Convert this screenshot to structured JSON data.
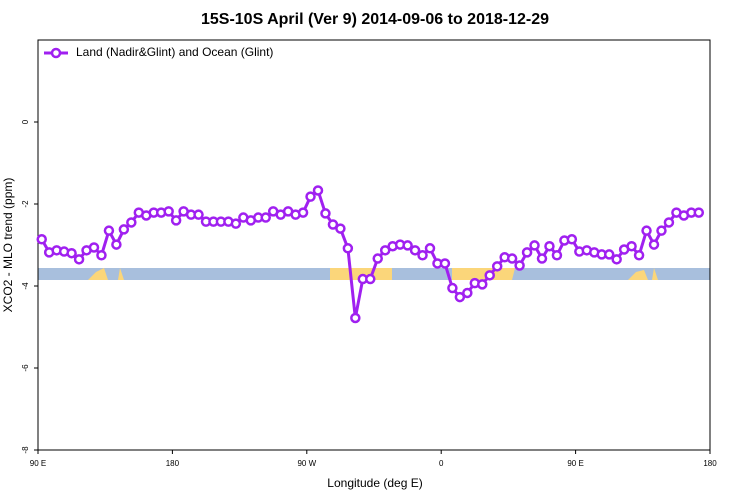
{
  "chart_data": {
    "type": "line",
    "title": "15S-10S April (Ver 9)   2014-09-06 to 2018-12-29",
    "x_label": "Longitude (deg E)",
    "y_label": "XCO2 - MLO trend (ppm)",
    "xlim": [
      90,
      540
    ],
    "ylim": [
      -8,
      2
    ],
    "xticks": [
      {
        "value": 90,
        "label": "90 E"
      },
      180,
      {
        "value": 270,
        "label": "90 W"
      },
      {
        "value": 360,
        "label": "0"
      },
      {
        "value": 450,
        "label": "90 E"
      },
      {
        "value": 540,
        "label": "180"
      }
    ],
    "yticks": [
      -8,
      -6,
      -4,
      -2,
      0
    ],
    "legend": "upper left",
    "x": [
      92.5,
      97.5,
      102.5,
      107.5,
      112.5,
      117.5,
      122.5,
      127.5,
      132.5,
      137.5,
      142.5,
      147.5,
      152.5,
      157.5,
      162.5,
      167.5,
      172.5,
      177.5,
      182.5,
      187.5,
      192.5,
      197.5,
      202.5,
      207.5,
      212.5,
      217.5,
      222.5,
      227.5,
      232.5,
      237.5,
      242.5,
      247.5,
      252.5,
      257.5,
      262.5,
      267.5,
      272.5,
      277.5,
      282.5,
      287.5,
      292.5,
      297.5,
      302.5,
      307.5,
      312.5,
      317.5,
      322.5,
      327.5,
      332.5,
      337.5,
      342.5,
      347.5,
      352.5,
      357.5,
      362.5,
      367.5,
      372.5,
      377.5,
      382.5,
      387.5,
      392.5,
      397.5,
      402.5,
      407.5,
      412.5,
      417.5,
      422.5,
      427.5,
      432.5,
      437.5,
      442.5,
      447.5,
      452.5,
      457.5,
      462.5,
      467.5,
      472.5,
      477.5,
      482.5,
      487.5,
      492.5,
      497.5,
      502.5,
      507.5,
      512.5,
      517.5,
      522.5,
      527.5,
      532.5
    ],
    "series": [
      {
        "name": "Land (Nadir&Glint) and Ocean (Glint)",
        "color": "#a020f0",
        "values": [
          -2.86,
          -3.18,
          -3.13,
          -3.16,
          -3.2,
          -3.35,
          -3.13,
          -3.06,
          -3.25,
          -2.65,
          -2.99,
          -2.62,
          -2.45,
          -2.21,
          -2.28,
          -2.21,
          -2.21,
          -2.18,
          -2.4,
          -2.18,
          -2.26,
          -2.26,
          -2.43,
          -2.43,
          -2.43,
          -2.43,
          -2.48,
          -2.33,
          -2.4,
          -2.33,
          -2.33,
          -2.18,
          -2.26,
          -2.18,
          -2.26,
          -2.21,
          -1.82,
          -1.67,
          -2.23,
          -2.5,
          -2.6,
          -3.08,
          -4.78,
          -3.83,
          -3.83,
          -3.33,
          -3.13,
          -3.03,
          -2.99,
          -3.01,
          -3.13,
          -3.25,
          -3.08,
          -3.45,
          -3.45,
          -4.05,
          -4.27,
          -4.17,
          -3.93,
          -3.96,
          -3.74,
          -3.52,
          -3.3,
          -3.33,
          -3.5,
          -3.18,
          -3.01,
          -3.33,
          -3.03,
          -3.25,
          -2.89,
          -2.86,
          -3.16,
          -3.13,
          -3.18,
          -3.23,
          -3.23,
          -3.35,
          -3.11,
          -3.03,
          -3.25,
          -2.65,
          -2.99,
          -2.65,
          -2.45,
          -2.21,
          -2.28,
          -2.21,
          -2.21
        ]
      }
    ]
  }
}
